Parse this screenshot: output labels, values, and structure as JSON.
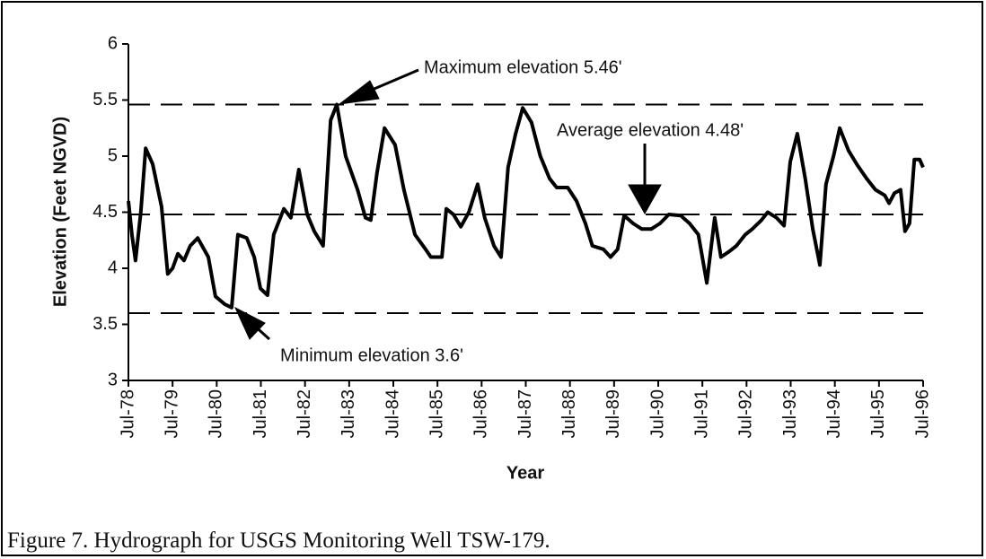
{
  "chart_data": {
    "type": "line",
    "axis_label_y": "Elevation  (Feet  NGVD)",
    "axis_label_x": "Year",
    "caption": "Figure 7.  Hydrograph for USGS Monitoring Well TSW-179.",
    "annotations": [
      "Maximum elevation 5.46'",
      "Average elevation 4.48'",
      "Minimum elevation 3.6'"
    ],
    "reference_lines": [
      5.46,
      4.48,
      3.6
    ],
    "color": "#000000",
    "x": [
      1978.5,
      1978.58,
      1978.66,
      1978.78,
      1978.89,
      1979.05,
      1979.25,
      1979.39,
      1979.5,
      1979.62,
      1979.76,
      1979.9,
      1980.07,
      1980.31,
      1980.47,
      1980.68,
      1980.84,
      1980.98,
      1981.18,
      1981.35,
      1981.49,
      1981.65,
      1981.79,
      1982.02,
      1982.18,
      1982.36,
      1982.55,
      1982.71,
      1982.91,
      1983.08,
      1983.22,
      1983.42,
      1983.69,
      1983.87,
      1983.99,
      1984.13,
      1984.3,
      1984.54,
      1984.74,
      1984.99,
      1985.23,
      1985.35,
      1985.6,
      1985.7,
      1985.86,
      1986.03,
      1986.21,
      1986.41,
      1986.57,
      1986.78,
      1986.94,
      1987.1,
      1987.27,
      1987.43,
      1987.63,
      1987.83,
      1988.04,
      1988.2,
      1988.45,
      1988.65,
      1988.85,
      1989.01,
      1989.26,
      1989.42,
      1989.58,
      1989.73,
      1989.93,
      1990.13,
      1990.34,
      1990.54,
      1990.74,
      1991.01,
      1991.21,
      1991.41,
      1991.6,
      1991.78,
      1991.92,
      1992.11,
      1992.27,
      1992.47,
      1992.63,
      1992.84,
      1992.98,
      1993.18,
      1993.35,
      1993.49,
      1993.65,
      1993.83,
      1994.0,
      1994.16,
      1994.3,
      1994.47,
      1994.61,
      1994.81,
      1995.01,
      1995.22,
      1995.42,
      1995.63,
      1995.73,
      1995.85,
      1995.99,
      1996.09,
      1996.19,
      1996.3,
      1996.42,
      1996.5
    ],
    "values": [
      4.6,
      4.3,
      4.07,
      4.5,
      5.07,
      4.93,
      4.55,
      3.95,
      4.0,
      4.13,
      4.07,
      4.2,
      4.27,
      4.1,
      3.75,
      3.68,
      3.65,
      4.3,
      4.27,
      4.1,
      3.82,
      3.76,
      4.3,
      4.53,
      4.45,
      4.88,
      4.48,
      4.33,
      4.2,
      5.32,
      5.46,
      5.0,
      4.7,
      4.45,
      4.43,
      4.85,
      5.25,
      5.1,
      4.7,
      4.3,
      4.17,
      4.1,
      4.1,
      4.53,
      4.48,
      4.37,
      4.5,
      4.75,
      4.45,
      4.2,
      4.1,
      4.9,
      5.2,
      5.43,
      5.3,
      5.0,
      4.8,
      4.72,
      4.72,
      4.6,
      4.4,
      4.2,
      4.17,
      4.1,
      4.17,
      4.47,
      4.4,
      4.35,
      4.35,
      4.4,
      4.48,
      4.47,
      4.4,
      4.3,
      3.87,
      4.45,
      4.1,
      4.15,
      4.2,
      4.3,
      4.35,
      4.43,
      4.5,
      4.45,
      4.38,
      4.95,
      5.2,
      4.8,
      4.35,
      4.03,
      4.75,
      5.0,
      5.25,
      5.05,
      4.92,
      4.8,
      4.7,
      4.65,
      4.58,
      4.67,
      4.7,
      4.33,
      4.4,
      4.97,
      4.97,
      4.9
    ],
    "xlim": [
      1978.5,
      1996.5
    ],
    "xticks": [
      {
        "value": 1978.5,
        "label": "Jul-78"
      },
      {
        "value": 1979.5,
        "label": "Jul-79"
      },
      {
        "value": 1980.5,
        "label": "Jul-80"
      },
      {
        "value": 1981.5,
        "label": "Jul-81"
      },
      {
        "value": 1982.5,
        "label": "Jul-82"
      },
      {
        "value": 1983.5,
        "label": "Jul-83"
      },
      {
        "value": 1984.5,
        "label": "Jul-84"
      },
      {
        "value": 1985.5,
        "label": "Jul-85"
      },
      {
        "value": 1986.5,
        "label": "Jul-86"
      },
      {
        "value": 1987.5,
        "label": "Jul-87"
      },
      {
        "value": 1988.5,
        "label": "Jul-88"
      },
      {
        "value": 1989.5,
        "label": "Jul-89"
      },
      {
        "value": 1990.5,
        "label": "Jul-90"
      },
      {
        "value": 1991.5,
        "label": "Jul-91"
      },
      {
        "value": 1992.5,
        "label": "Jul-92"
      },
      {
        "value": 1993.5,
        "label": "Jul-93"
      },
      {
        "value": 1994.5,
        "label": "Jul-94"
      },
      {
        "value": 1995.5,
        "label": "Jul-95"
      },
      {
        "value": 1996.5,
        "label": "Jul-96"
      }
    ],
    "ylim": [
      3,
      6
    ],
    "yticks": [
      3,
      3.5,
      4,
      4.5,
      5,
      5.5,
      6
    ],
    "grid": false
  }
}
